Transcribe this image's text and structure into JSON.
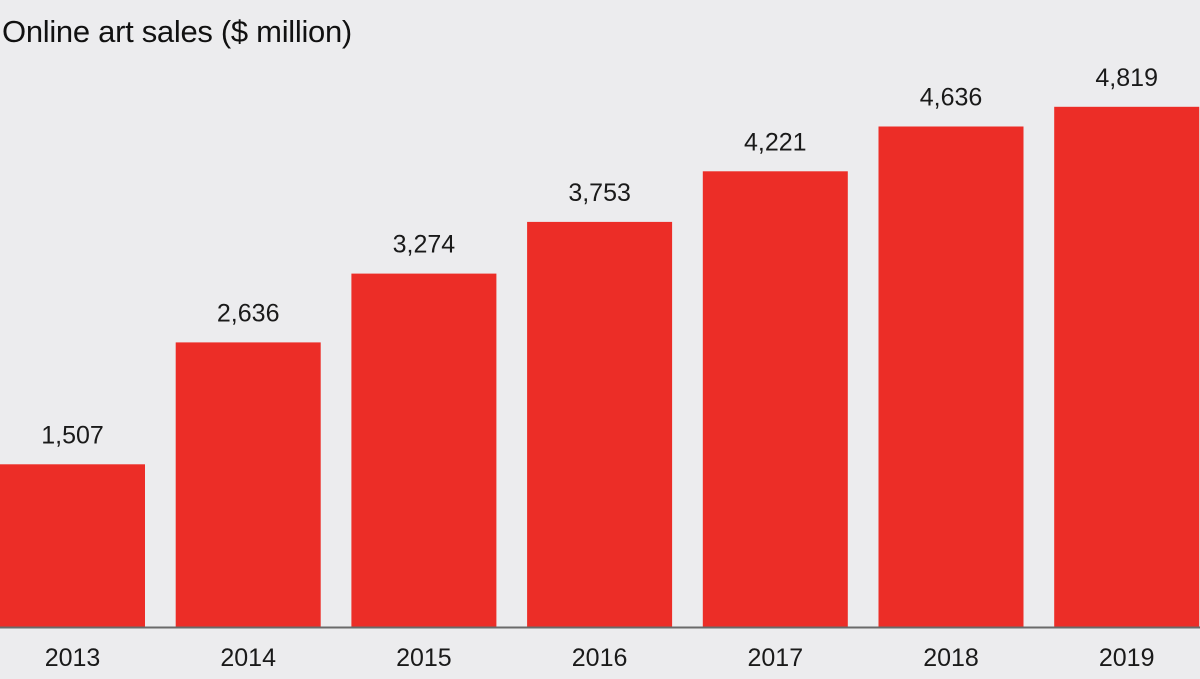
{
  "chart_data": {
    "type": "bar",
    "title": "Online art sales ($ million)",
    "xlabel": "",
    "ylabel": "",
    "categories": [
      "2013",
      "2014",
      "2015",
      "2016",
      "2017",
      "2018",
      "2019"
    ],
    "values": [
      1507,
      2636,
      3274,
      3753,
      4221,
      4636,
      4819
    ],
    "value_labels": [
      "1,507",
      "2,636",
      "3,274",
      "3,753",
      "4,221",
      "4,636",
      "4,819"
    ],
    "ylim": [
      0,
      5000
    ],
    "grid": false,
    "legend": "none",
    "colors": {
      "bar": "#ec2d27",
      "background": "#ececee",
      "axis": "#6a6a6a",
      "text": "#1a1a1a"
    }
  }
}
